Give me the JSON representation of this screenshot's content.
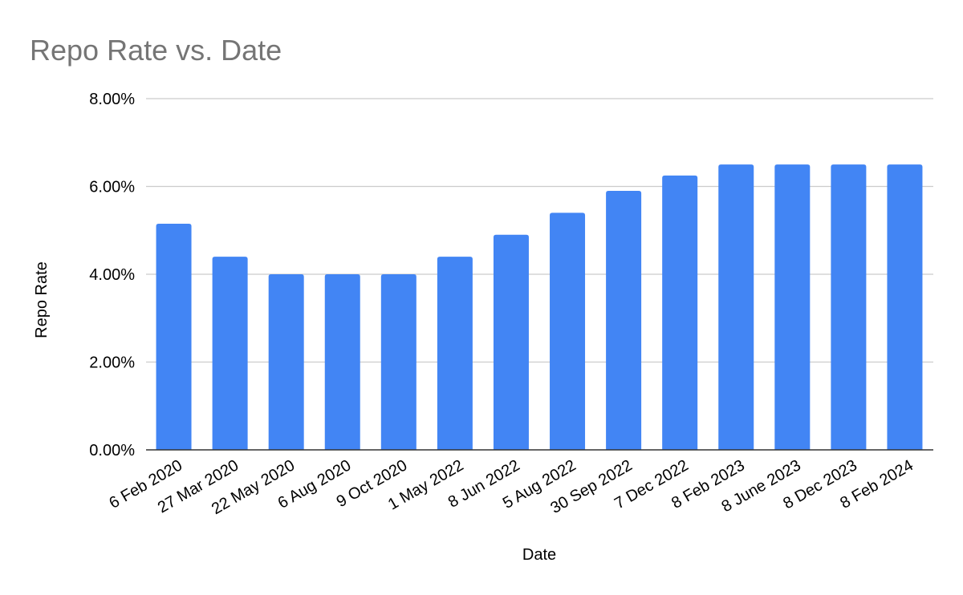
{
  "chart_data": {
    "type": "bar",
    "title": "Repo Rate vs. Date",
    "xlabel": "Date",
    "ylabel": "Repo Rate",
    "categories": [
      "6 Feb 2020",
      "27 Mar 2020",
      "22 May 2020",
      "6 Aug 2020",
      "9 Oct 2020",
      "1 May 2022",
      "8 Jun 2022",
      "5 Aug 2022",
      "30 Sep 2022",
      "7 Dec 2022",
      "8 Feb 2023",
      "8 June 2023",
      "8 Dec 2023",
      "8 Feb 2024"
    ],
    "values": [
      5.15,
      4.4,
      4.0,
      4.0,
      4.0,
      4.4,
      4.9,
      5.4,
      5.9,
      6.25,
      6.5,
      6.5,
      6.5,
      6.5
    ],
    "ylim": [
      0,
      8
    ],
    "yticks": [
      0,
      2,
      4,
      6,
      8
    ],
    "ytick_labels": [
      "0.00%",
      "2.00%",
      "4.00%",
      "6.00%",
      "8.00%"
    ],
    "grid": true,
    "legend": "none",
    "bar_color": "#4285f4"
  }
}
